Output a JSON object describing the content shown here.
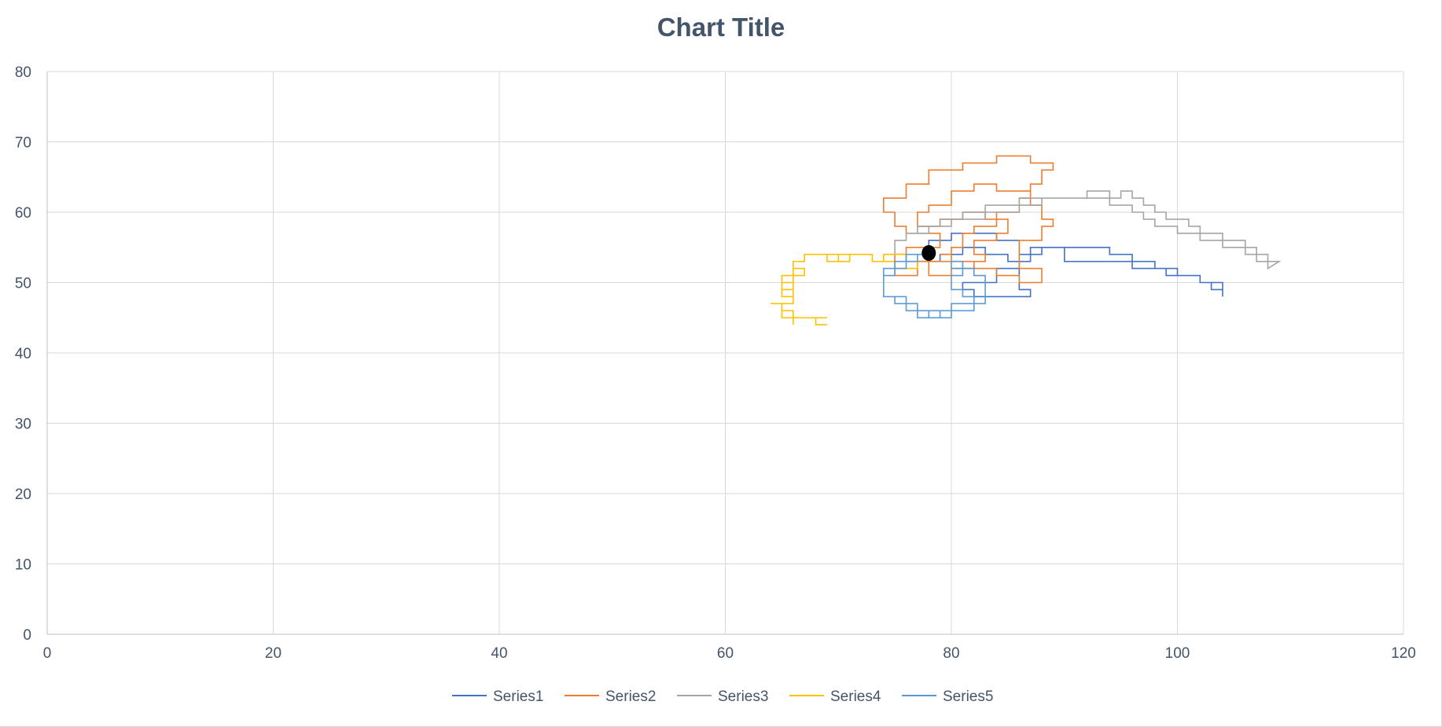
{
  "chart_data": {
    "type": "scatter",
    "title": "Chart Title",
    "xlabel": "",
    "ylabel": "",
    "xlim": [
      0,
      120
    ],
    "ylim": [
      0,
      80
    ],
    "x_ticks": [
      "0",
      "20",
      "40",
      "60",
      "80",
      "100",
      "120"
    ],
    "y_ticks": [
      "0",
      "10",
      "20",
      "30",
      "40",
      "50",
      "60",
      "70",
      "80"
    ],
    "grid": true,
    "legend_position": "bottom",
    "series": [
      {
        "name": "Series1",
        "color": "#4472c4",
        "points": [
          [
            77,
            53
          ],
          [
            78,
            53
          ],
          [
            78,
            56
          ],
          [
            80,
            56
          ],
          [
            80,
            57
          ],
          [
            84,
            57
          ],
          [
            84,
            56
          ],
          [
            86,
            56
          ],
          [
            86,
            54
          ],
          [
            88,
            54
          ],
          [
            88,
            55
          ],
          [
            94,
            55
          ],
          [
            94,
            54
          ],
          [
            96,
            54
          ],
          [
            96,
            53
          ],
          [
            98,
            53
          ],
          [
            98,
            52
          ],
          [
            100,
            52
          ],
          [
            100,
            51
          ],
          [
            102,
            51
          ],
          [
            102,
            50
          ],
          [
            103,
            50
          ],
          [
            103,
            49
          ],
          [
            104,
            49
          ],
          [
            104,
            48
          ],
          [
            104,
            50
          ],
          [
            102,
            50
          ],
          [
            102,
            51
          ],
          [
            99,
            51
          ],
          [
            99,
            52
          ],
          [
            96,
            52
          ],
          [
            96,
            53
          ],
          [
            90,
            53
          ],
          [
            90,
            55
          ],
          [
            87,
            55
          ],
          [
            87,
            53
          ],
          [
            86,
            53
          ],
          [
            86,
            52
          ],
          [
            84,
            52
          ],
          [
            84,
            50
          ],
          [
            81,
            50
          ],
          [
            81,
            49
          ],
          [
            82,
            49
          ],
          [
            82,
            48
          ],
          [
            87,
            48
          ],
          [
            87,
            49
          ],
          [
            86,
            49
          ],
          [
            86,
            53
          ],
          [
            85,
            53
          ],
          [
            85,
            54
          ],
          [
            83,
            54
          ],
          [
            83,
            55
          ],
          [
            81,
            55
          ],
          [
            81,
            54
          ],
          [
            79,
            54
          ],
          [
            79,
            53
          ],
          [
            77,
            53
          ]
        ]
      },
      {
        "name": "Series2",
        "color": "#ed7d31",
        "points": [
          [
            78,
            55
          ],
          [
            76,
            55
          ],
          [
            76,
            54
          ],
          [
            75,
            54
          ],
          [
            75,
            51
          ],
          [
            77,
            51
          ],
          [
            77,
            53
          ],
          [
            78,
            53
          ],
          [
            78,
            55
          ],
          [
            79,
            55
          ],
          [
            79,
            57
          ],
          [
            76,
            57
          ],
          [
            76,
            58
          ],
          [
            75,
            58
          ],
          [
            75,
            60
          ],
          [
            74,
            60
          ],
          [
            74,
            62
          ],
          [
            76,
            62
          ],
          [
            76,
            64
          ],
          [
            78,
            64
          ],
          [
            78,
            66
          ],
          [
            81,
            66
          ],
          [
            81,
            67
          ],
          [
            84,
            67
          ],
          [
            84,
            68
          ],
          [
            87,
            68
          ],
          [
            87,
            67
          ],
          [
            89,
            67
          ],
          [
            89,
            66
          ],
          [
            88,
            66
          ],
          [
            88,
            64
          ],
          [
            87,
            64
          ],
          [
            87,
            62
          ],
          [
            86,
            62
          ],
          [
            86,
            60
          ],
          [
            84,
            60
          ],
          [
            84,
            58
          ],
          [
            82,
            58
          ],
          [
            82,
            57
          ],
          [
            81,
            57
          ],
          [
            81,
            55
          ],
          [
            80,
            55
          ],
          [
            80,
            53
          ],
          [
            82,
            53
          ],
          [
            82,
            52
          ],
          [
            84,
            52
          ],
          [
            84,
            51
          ],
          [
            86,
            51
          ],
          [
            86,
            50
          ],
          [
            88,
            50
          ],
          [
            88,
            52
          ],
          [
            86,
            52
          ],
          [
            86,
            56
          ],
          [
            88,
            56
          ],
          [
            88,
            58
          ],
          [
            89,
            58
          ],
          [
            89,
            59
          ],
          [
            88,
            59
          ],
          [
            88,
            61
          ],
          [
            87,
            61
          ],
          [
            87,
            63
          ],
          [
            84,
            63
          ],
          [
            84,
            64
          ],
          [
            82,
            64
          ],
          [
            82,
            63
          ],
          [
            80,
            63
          ],
          [
            80,
            61
          ],
          [
            78,
            61
          ],
          [
            78,
            60
          ],
          [
            77,
            60
          ],
          [
            77,
            58
          ],
          [
            79,
            58
          ],
          [
            79,
            59
          ],
          [
            81,
            59
          ],
          [
            81,
            60
          ],
          [
            83,
            60
          ],
          [
            83,
            59
          ],
          [
            85,
            59
          ],
          [
            85,
            57
          ],
          [
            84,
            57
          ],
          [
            84,
            56
          ],
          [
            82,
            56
          ],
          [
            82,
            54
          ],
          [
            83,
            54
          ],
          [
            83,
            53
          ],
          [
            82,
            53
          ],
          [
            82,
            52
          ],
          [
            80,
            52
          ],
          [
            80,
            51
          ],
          [
            78,
            51
          ],
          [
            78,
            53
          ],
          [
            80,
            53
          ],
          [
            80,
            54
          ],
          [
            79,
            54
          ]
        ]
      },
      {
        "name": "Series3",
        "color": "#a5a5a5",
        "points": [
          [
            76,
            57
          ],
          [
            77,
            57
          ],
          [
            77,
            58
          ],
          [
            79,
            58
          ],
          [
            79,
            59
          ],
          [
            81,
            59
          ],
          [
            81,
            60
          ],
          [
            83,
            60
          ],
          [
            83,
            61
          ],
          [
            86,
            61
          ],
          [
            86,
            62
          ],
          [
            92,
            62
          ],
          [
            92,
            63
          ],
          [
            94,
            63
          ],
          [
            94,
            62
          ],
          [
            95,
            62
          ],
          [
            95,
            63
          ],
          [
            96,
            63
          ],
          [
            96,
            62
          ],
          [
            97,
            62
          ],
          [
            97,
            61
          ],
          [
            98,
            61
          ],
          [
            98,
            60
          ],
          [
            99,
            60
          ],
          [
            99,
            59
          ],
          [
            101,
            59
          ],
          [
            101,
            58
          ],
          [
            102,
            58
          ],
          [
            102,
            57
          ],
          [
            104,
            57
          ],
          [
            104,
            56
          ],
          [
            106,
            56
          ],
          [
            106,
            55
          ],
          [
            107,
            55
          ],
          [
            107,
            54
          ],
          [
            108,
            54
          ],
          [
            108,
            53
          ],
          [
            109,
            53
          ],
          [
            108,
            52
          ],
          [
            108,
            53
          ],
          [
            107,
            53
          ],
          [
            107,
            54
          ],
          [
            106,
            54
          ],
          [
            106,
            55
          ],
          [
            104,
            55
          ],
          [
            104,
            56
          ],
          [
            102,
            56
          ],
          [
            102,
            57
          ],
          [
            100,
            57
          ],
          [
            100,
            58
          ],
          [
            98,
            58
          ],
          [
            98,
            59
          ],
          [
            97,
            59
          ],
          [
            97,
            60
          ],
          [
            96,
            60
          ],
          [
            96,
            61
          ],
          [
            94,
            61
          ],
          [
            94,
            62
          ],
          [
            88,
            62
          ],
          [
            88,
            61
          ],
          [
            86,
            61
          ],
          [
            86,
            60
          ],
          [
            83,
            60
          ],
          [
            83,
            59
          ],
          [
            80,
            59
          ],
          [
            80,
            58
          ],
          [
            78,
            58
          ],
          [
            78,
            57
          ],
          [
            76,
            57
          ],
          [
            76,
            56
          ],
          [
            75,
            56
          ],
          [
            75,
            54
          ],
          [
            76,
            54
          ],
          [
            76,
            53
          ]
        ]
      },
      {
        "name": "Series4",
        "color": "#ffc000",
        "points": [
          [
            69,
            44
          ],
          [
            68,
            44
          ],
          [
            68,
            45
          ],
          [
            69,
            45
          ],
          [
            69,
            45
          ],
          [
            65,
            45
          ],
          [
            65,
            46
          ],
          [
            66,
            46
          ],
          [
            66,
            45
          ],
          [
            65,
            45
          ],
          [
            65,
            47
          ],
          [
            64,
            47
          ],
          [
            66,
            47
          ],
          [
            66,
            48
          ],
          [
            65,
            48
          ],
          [
            65,
            49
          ],
          [
            66,
            49
          ],
          [
            66,
            50
          ],
          [
            65,
            50
          ],
          [
            65,
            49
          ],
          [
            66,
            49
          ],
          [
            66,
            52
          ],
          [
            67,
            52
          ],
          [
            67,
            51
          ],
          [
            66,
            51
          ],
          [
            66,
            53
          ],
          [
            67,
            53
          ],
          [
            67,
            54
          ],
          [
            69,
            54
          ],
          [
            69,
            53
          ],
          [
            70,
            53
          ],
          [
            70,
            54
          ],
          [
            73,
            54
          ],
          [
            73,
            53
          ],
          [
            74,
            53
          ],
          [
            74,
            54
          ],
          [
            76,
            54
          ],
          [
            76,
            53
          ],
          [
            77,
            53
          ],
          [
            77,
            52
          ],
          [
            75,
            52
          ],
          [
            75,
            53
          ],
          [
            73,
            53
          ],
          [
            73,
            54
          ],
          [
            71,
            54
          ],
          [
            71,
            53
          ],
          [
            70,
            53
          ],
          [
            70,
            54
          ],
          [
            67,
            54
          ],
          [
            67,
            53
          ],
          [
            66,
            53
          ],
          [
            66,
            51
          ],
          [
            65,
            51
          ],
          [
            65,
            49
          ],
          [
            66,
            49
          ],
          [
            66,
            47
          ],
          [
            65,
            47
          ],
          [
            65,
            45
          ],
          [
            66,
            45
          ],
          [
            66,
            44
          ]
        ]
      },
      {
        "name": "Series5",
        "color": "#5b9bd5",
        "points": [
          [
            78,
            54
          ],
          [
            77,
            54
          ],
          [
            77,
            53
          ],
          [
            76,
            53
          ],
          [
            76,
            52
          ],
          [
            75,
            52
          ],
          [
            75,
            51
          ],
          [
            74,
            51
          ],
          [
            74,
            48
          ],
          [
            75,
            48
          ],
          [
            75,
            47
          ],
          [
            76,
            47
          ],
          [
            76,
            46
          ],
          [
            77,
            46
          ],
          [
            77,
            45
          ],
          [
            79,
            45
          ],
          [
            79,
            46
          ],
          [
            78,
            46
          ],
          [
            78,
            45
          ],
          [
            80,
            45
          ],
          [
            80,
            46
          ],
          [
            82,
            46
          ],
          [
            82,
            47
          ],
          [
            83,
            47
          ],
          [
            83,
            51
          ],
          [
            82,
            51
          ],
          [
            82,
            52
          ],
          [
            81,
            52
          ],
          [
            81,
            53
          ],
          [
            80,
            53
          ],
          [
            80,
            52
          ],
          [
            81,
            52
          ],
          [
            81,
            51
          ],
          [
            80,
            51
          ],
          [
            80,
            49
          ],
          [
            81,
            49
          ],
          [
            81,
            48
          ],
          [
            82,
            48
          ],
          [
            82,
            47
          ],
          [
            80,
            47
          ],
          [
            80,
            46
          ],
          [
            77,
            46
          ],
          [
            77,
            47
          ],
          [
            76,
            47
          ],
          [
            76,
            48
          ],
          [
            74,
            48
          ],
          [
            74,
            52
          ],
          [
            75,
            52
          ],
          [
            75,
            53
          ],
          [
            76,
            53
          ],
          [
            76,
            54
          ],
          [
            78,
            54
          ]
        ]
      }
    ]
  }
}
